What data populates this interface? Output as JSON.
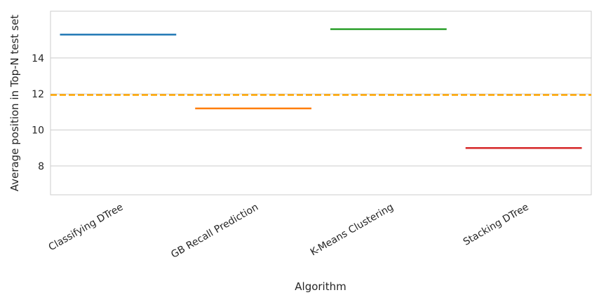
{
  "chart_data": {
    "type": "line",
    "title": "",
    "xlabel": "Algorithm",
    "ylabel": "Average position in Top-N test set",
    "categories": [
      "Classifying DTree",
      "GB Recall Prediction",
      "K-Means Clustering",
      "Stacking DTree"
    ],
    "values": [
      15.3,
      11.2,
      15.6,
      9.0
    ],
    "colors": [
      "#1f77b4",
      "#ff7f0e",
      "#2ca02c",
      "#d62728"
    ],
    "reference_line": {
      "value": 11.95,
      "style": "dashed",
      "color": "#ffa500"
    },
    "ylim": [
      6.4,
      16.6
    ],
    "yticks": [
      8,
      10,
      12,
      14
    ],
    "grid": "horizontal"
  }
}
